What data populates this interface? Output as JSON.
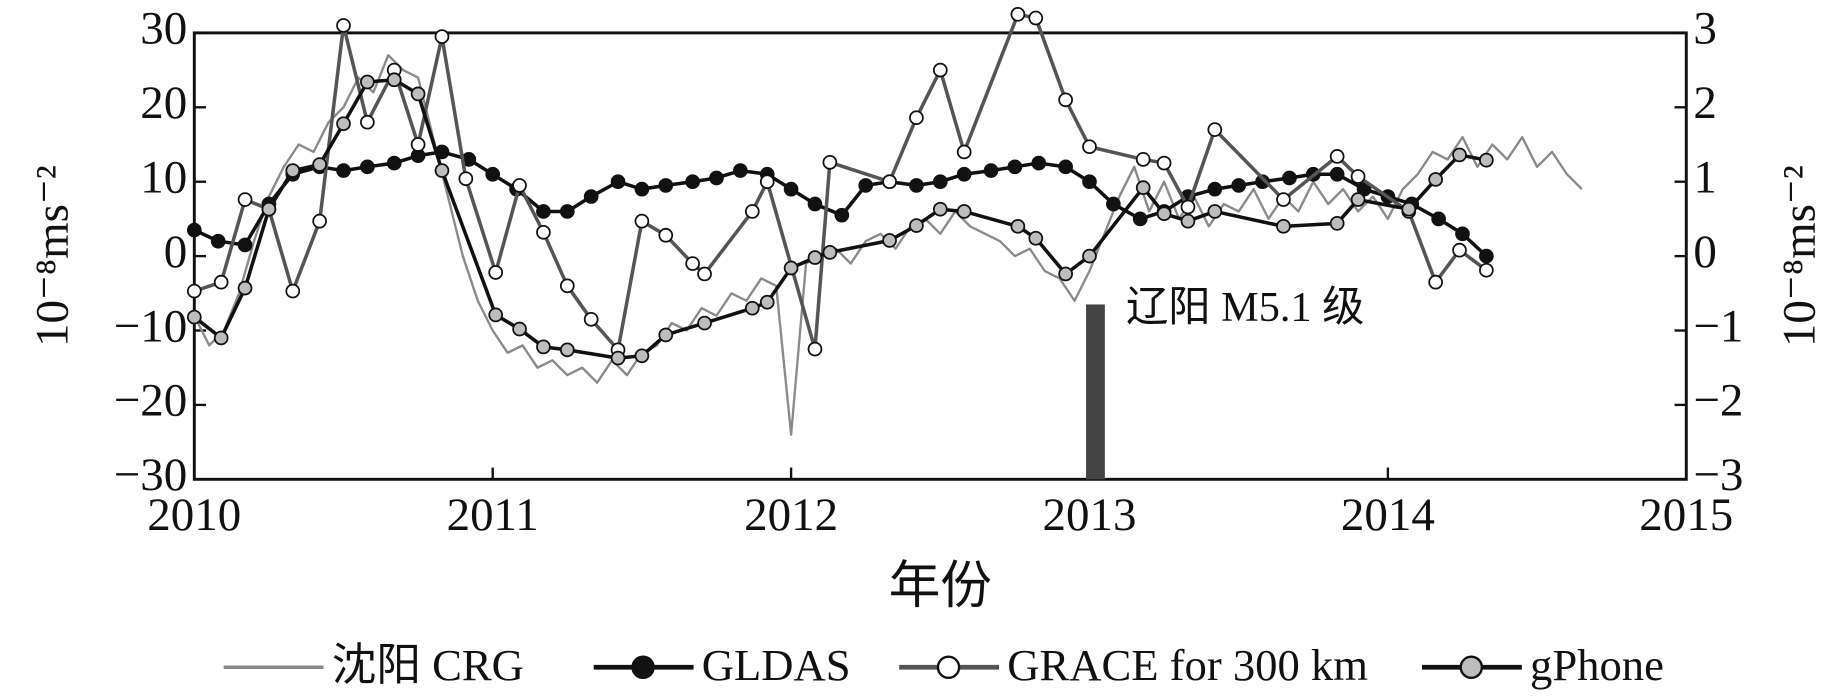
{
  "chart_data": {
    "type": "line",
    "ylabel": "10⁻⁸ms⁻²",
    "y2label": "10⁻⁸ms⁻²",
    "xlabel": "年份",
    "xlim": [
      2010,
      2015
    ],
    "xticks": [
      2010,
      2011,
      2012,
      2013,
      2014,
      2015
    ],
    "ylim": [
      -30,
      30
    ],
    "yticks": [
      {
        "value": -30,
        "label": "−30"
      },
      {
        "value": -20,
        "label": "−20"
      },
      {
        "value": -10,
        "label": "−10"
      },
      0,
      10,
      20,
      30
    ],
    "y2lim": [
      -3,
      3
    ],
    "y2ticks": [
      {
        "value": -3,
        "label": "−3"
      },
      {
        "value": -2,
        "label": "−2"
      },
      {
        "value": -1,
        "label": "−1"
      },
      0,
      1,
      2,
      3
    ],
    "event": {
      "label": "辽阳 M5.1 级",
      "x": 2013.02,
      "value": -6.5
    },
    "series": [
      {
        "name": "沈阳 CRG",
        "color": "#8a8a8a",
        "marker": "none",
        "x": [
          2010.0,
          2010.05,
          2010.1,
          2010.15,
          2010.2,
          2010.25,
          2010.3,
          2010.35,
          2010.4,
          2010.45,
          2010.5,
          2010.55,
          2010.6,
          2010.65,
          2010.7,
          2010.75,
          2010.8,
          2010.85,
          2010.9,
          2010.95,
          2011.0,
          2011.05,
          2011.1,
          2011.15,
          2011.2,
          2011.25,
          2011.3,
          2011.35,
          2011.4,
          2011.45,
          2011.5,
          2011.55,
          2011.6,
          2011.65,
          2011.7,
          2011.75,
          2011.8,
          2011.85,
          2011.9,
          2011.95,
          2012.0,
          2012.05,
          2012.1,
          2012.15,
          2012.2,
          2012.25,
          2012.3,
          2012.35,
          2012.4,
          2012.45,
          2012.5,
          2012.55,
          2012.6,
          2012.65,
          2012.7,
          2012.75,
          2012.8,
          2012.85,
          2012.9,
          2012.95,
          2013.0,
          2013.05,
          2013.1,
          2013.15,
          2013.2,
          2013.25,
          2013.3,
          2013.35,
          2013.4,
          2013.45,
          2013.5,
          2013.55,
          2013.6,
          2013.65,
          2013.7,
          2013.75,
          2013.8,
          2013.85,
          2013.9,
          2013.95,
          2014.0,
          2014.05,
          2014.1,
          2014.15,
          2014.2,
          2014.25,
          2014.3,
          2014.35,
          2014.4,
          2014.45,
          2014.5,
          2014.55,
          2014.6,
          2014.65
        ],
        "values": [
          -8,
          -12,
          -10,
          -5,
          2,
          8,
          12,
          15,
          14,
          18,
          20,
          24,
          22,
          27,
          25,
          24,
          16,
          8,
          0,
          -6,
          -10,
          -13,
          -12,
          -15,
          -14,
          -16,
          -15,
          -17,
          -14,
          -16,
          -13,
          -12,
          -9,
          -10,
          -7,
          -8,
          -5,
          -6,
          -3,
          -4,
          -24,
          -1,
          0,
          1,
          -1,
          2,
          3,
          1,
          4,
          5,
          3,
          6,
          4,
          3,
          2,
          0,
          1,
          -2,
          -3,
          -6,
          -2,
          3,
          8,
          12,
          6,
          10,
          5,
          8,
          4,
          7,
          6,
          9,
          5,
          8,
          6,
          10,
          7,
          9,
          6,
          8,
          5,
          9,
          11,
          14,
          13,
          16,
          12,
          15,
          13,
          16,
          12,
          14,
          11,
          9
        ]
      },
      {
        "name": "GLDAS",
        "color": "#111111",
        "marker": "#111111",
        "x": [
          2010.0,
          2010.08,
          2010.17,
          2010.25,
          2010.33,
          2010.42,
          2010.5,
          2010.58,
          2010.67,
          2010.75,
          2010.83,
          2010.92,
          2011.0,
          2011.08,
          2011.17,
          2011.25,
          2011.33,
          2011.42,
          2011.5,
          2011.58,
          2011.67,
          2011.75,
          2011.83,
          2011.92,
          2012.0,
          2012.08,
          2012.17,
          2012.25,
          2012.33,
          2012.42,
          2012.5,
          2012.58,
          2012.67,
          2012.75,
          2012.83,
          2012.92,
          2013.0,
          2013.08,
          2013.17,
          2013.25,
          2013.33,
          2013.42,
          2013.5,
          2013.58,
          2013.67,
          2013.75,
          2013.83,
          2013.92,
          2014.0,
          2014.08,
          2014.17,
          2014.25,
          2014.33
        ],
        "values": [
          3.5,
          2,
          1.5,
          7,
          11,
          12,
          11.5,
          12,
          12.5,
          13.5,
          14,
          13,
          11,
          9,
          6,
          6,
          8,
          10,
          9,
          9.5,
          10,
          10.5,
          11.5,
          11,
          9,
          7,
          5.5,
          9.5,
          10,
          9.5,
          10,
          11,
          11.5,
          12,
          12.5,
          12,
          10,
          7,
          5,
          6,
          8,
          9,
          9.5,
          10,
          10.5,
          11,
          11,
          9,
          8,
          7,
          5,
          3,
          0
        ]
      },
      {
        "name": "GRACE for 300 km",
        "color": "#555555",
        "marker": "#ffffff",
        "x": [
          2010.0,
          2010.09,
          2010.17,
          2010.25,
          2010.33,
          2010.42,
          2010.5,
          2010.58,
          2010.67,
          2010.75,
          2010.83,
          2010.91,
          2011.01,
          2011.09,
          2011.17,
          2011.25,
          2011.33,
          2011.42,
          2011.5,
          2011.58,
          2011.67,
          2011.71,
          2011.87,
          2011.92,
          2012.08,
          2012.13,
          2012.33,
          2012.42,
          2012.5,
          2012.58,
          2012.76,
          2012.82,
          2012.92,
          2013.0,
          2013.18,
          2013.25,
          2013.33,
          2013.42,
          2013.65,
          2013.83,
          2013.9,
          2014.07,
          2014.16,
          2014.24,
          2014.33
        ],
        "values": [
          -4.7,
          -3.5,
          7.6,
          6.3,
          -4.7,
          4.7,
          31,
          18,
          25,
          15,
          29.5,
          10.4,
          -2.2,
          9.5,
          3.2,
          -4,
          -8.5,
          -12.6,
          4.7,
          2.8,
          -1,
          -2.4,
          6,
          10,
          -12.5,
          12.6,
          10,
          18.6,
          25,
          14,
          32.5,
          32,
          21,
          14.7,
          13,
          12.5,
          6.6,
          17,
          7.6,
          13.4,
          10.7,
          6,
          -3.5,
          0.8,
          -1.9
        ]
      },
      {
        "name": "gPhone",
        "color": "#111111",
        "marker": "#bdbdbd",
        "x": [
          2010.0,
          2010.09,
          2010.17,
          2010.25,
          2010.33,
          2010.42,
          2010.5,
          2010.58,
          2010.67,
          2010.75,
          2010.83,
          2011.01,
          2011.09,
          2011.17,
          2011.25,
          2011.42,
          2011.5,
          2011.58,
          2011.71,
          2011.87,
          2011.92,
          2012.0,
          2012.08,
          2012.13,
          2012.33,
          2012.42,
          2012.5,
          2012.58,
          2012.76,
          2012.82,
          2012.92,
          2013.0,
          2013.18,
          2013.25,
          2013.33,
          2013.42,
          2013.65,
          2013.83,
          2013.9,
          2014.07,
          2014.16,
          2014.24,
          2014.33
        ],
        "values": [
          -8.2,
          -11,
          -4.3,
          6.3,
          11.5,
          12.3,
          17.8,
          23.4,
          23.7,
          21.8,
          11.5,
          -7.9,
          -9.8,
          -12.2,
          -12.6,
          -13.7,
          -13.4,
          -10.6,
          -9,
          -7,
          -6.2,
          -1.6,
          -0.2,
          0.5,
          2.1,
          4.1,
          6.3,
          6,
          4,
          2.4,
          -2.4,
          0,
          9.2,
          5.7,
          4.7,
          6,
          4,
          4.4,
          7.6,
          6.3,
          10.3,
          13.6,
          12.9
        ]
      }
    ]
  }
}
